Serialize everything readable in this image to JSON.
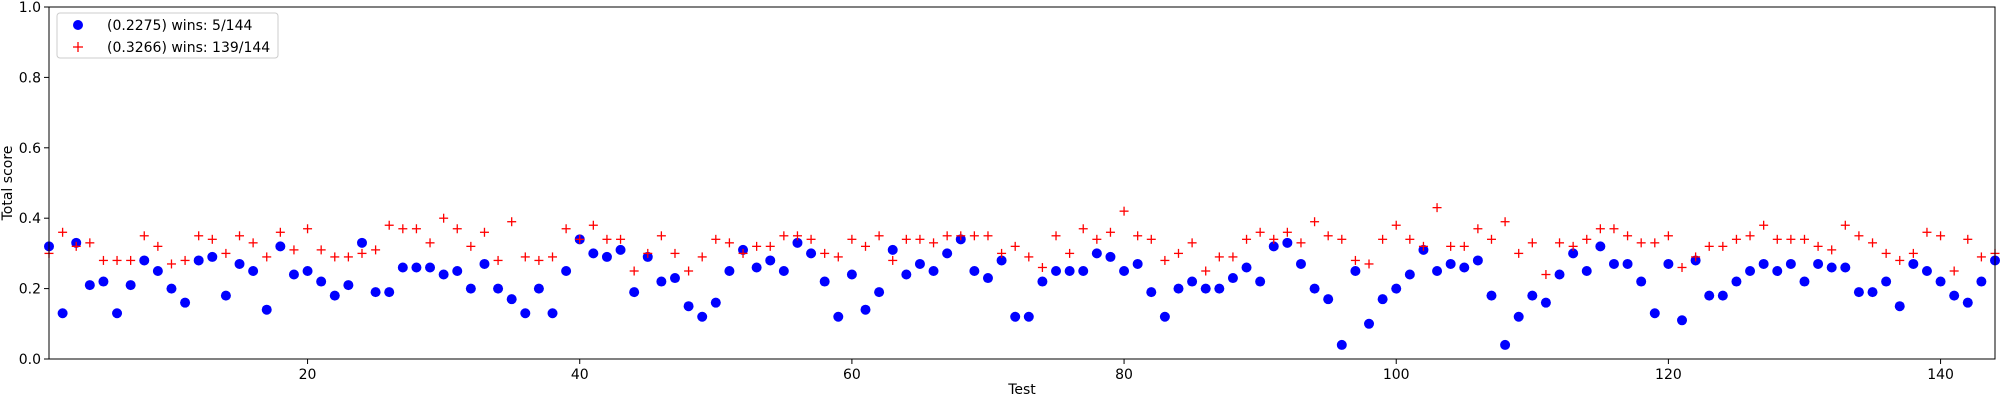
{
  "colors": {
    "series_a": "#0000ff",
    "series_b": "#ff0000",
    "axis": "#000000",
    "background": "#ffffff"
  },
  "chart_data": {
    "type": "scatter",
    "title": "",
    "xlabel": "Test",
    "ylabel": "Total score",
    "xlim": [
      1,
      144
    ],
    "ylim": [
      0.0,
      1.0
    ],
    "xticks": [
      20,
      40,
      60,
      80,
      100,
      120,
      140
    ],
    "yticks": [
      0.0,
      0.2,
      0.4,
      0.6,
      0.8,
      1.0
    ],
    "xtick_labels": [
      "20",
      "40",
      "60",
      "80",
      "100",
      "120",
      "140"
    ],
    "ytick_labels": [
      "0.0",
      "0.2",
      "0.4",
      "0.6",
      "0.8",
      "1.0"
    ],
    "grid": false,
    "legend_position": "top-left",
    "series": [
      {
        "name": "(0.2275) wins: 5/144",
        "marker": "circle",
        "color": "#0000ff",
        "y": [
          0.32,
          0.13,
          0.33,
          0.21,
          0.22,
          0.13,
          0.21,
          0.28,
          0.25,
          0.2,
          0.16,
          0.28,
          0.29,
          0.18,
          0.27,
          0.25,
          0.14,
          0.32,
          0.24,
          0.25,
          0.22,
          0.18,
          0.21,
          0.33,
          0.19,
          0.19,
          0.26,
          0.26,
          0.26,
          0.24,
          0.25,
          0.2,
          0.27,
          0.2,
          0.17,
          0.13,
          0.2,
          0.13,
          0.25,
          0.34,
          0.3,
          0.29,
          0.31,
          0.19,
          0.29,
          0.22,
          0.23,
          0.15,
          0.12,
          0.16,
          0.25,
          0.31,
          0.26,
          0.28,
          0.25,
          0.33,
          0.3,
          0.22,
          0.12,
          0.24,
          0.14,
          0.19,
          0.31,
          0.24,
          0.27,
          0.25,
          0.3,
          0.34,
          0.25,
          0.23,
          0.28,
          0.12,
          0.12,
          0.22,
          0.25,
          0.25,
          0.25,
          0.3,
          0.29,
          0.25,
          0.27,
          0.19,
          0.12,
          0.2,
          0.22,
          0.2,
          0.2,
          0.23,
          0.26,
          0.22,
          0.32,
          0.33,
          0.27,
          0.2,
          0.17,
          0.04,
          0.25,
          0.1,
          0.17,
          0.2,
          0.24,
          0.31,
          0.25,
          0.27,
          0.26,
          0.28,
          0.18,
          0.04,
          0.12,
          0.18,
          0.16,
          0.24,
          0.3,
          0.25,
          0.32,
          0.27,
          0.27,
          0.22,
          0.13,
          0.27,
          0.11,
          0.28,
          0.18,
          0.18,
          0.22,
          0.25,
          0.27,
          0.25,
          0.27,
          0.22,
          0.27,
          0.26,
          0.26,
          0.19,
          0.19,
          0.22,
          0.15,
          0.27,
          0.25,
          0.22,
          0.18,
          0.16,
          0.22,
          0.28
        ]
      },
      {
        "name": "(0.3266) wins: 139/144",
        "marker": "plus",
        "color": "#ff0000",
        "y": [
          0.3,
          0.36,
          0.32,
          0.33,
          0.28,
          0.28,
          0.28,
          0.35,
          0.32,
          0.27,
          0.28,
          0.35,
          0.34,
          0.3,
          0.35,
          0.33,
          0.29,
          0.36,
          0.31,
          0.37,
          0.31,
          0.29,
          0.29,
          0.3,
          0.31,
          0.38,
          0.37,
          0.37,
          0.33,
          0.4,
          0.37,
          0.32,
          0.36,
          0.28,
          0.39,
          0.29,
          0.28,
          0.29,
          0.37,
          0.34,
          0.38,
          0.34,
          0.34,
          0.25,
          0.3,
          0.35,
          0.3,
          0.25,
          0.29,
          0.34,
          0.33,
          0.3,
          0.32,
          0.32,
          0.35,
          0.35,
          0.34,
          0.3,
          0.29,
          0.34,
          0.32,
          0.35,
          0.28,
          0.34,
          0.34,
          0.33,
          0.35,
          0.35,
          0.35,
          0.35,
          0.3,
          0.32,
          0.29,
          0.26,
          0.35,
          0.3,
          0.37,
          0.34,
          0.36,
          0.42,
          0.35,
          0.34,
          0.28,
          0.3,
          0.33,
          0.25,
          0.29,
          0.29,
          0.34,
          0.36,
          0.34,
          0.36,
          0.33,
          0.39,
          0.35,
          0.34,
          0.28,
          0.27,
          0.34,
          0.38,
          0.34,
          0.32,
          0.43,
          0.32,
          0.32,
          0.37,
          0.34,
          0.39,
          0.3,
          0.33,
          0.24,
          0.33,
          0.32,
          0.34,
          0.37,
          0.37,
          0.35,
          0.33,
          0.33,
          0.35,
          0.26,
          0.29,
          0.32,
          0.32,
          0.34,
          0.35,
          0.38,
          0.34,
          0.34,
          0.34,
          0.32,
          0.31,
          0.38,
          0.35,
          0.33,
          0.3,
          0.28,
          0.3,
          0.36,
          0.35,
          0.25,
          0.34,
          0.29,
          0.3
        ]
      }
    ]
  }
}
